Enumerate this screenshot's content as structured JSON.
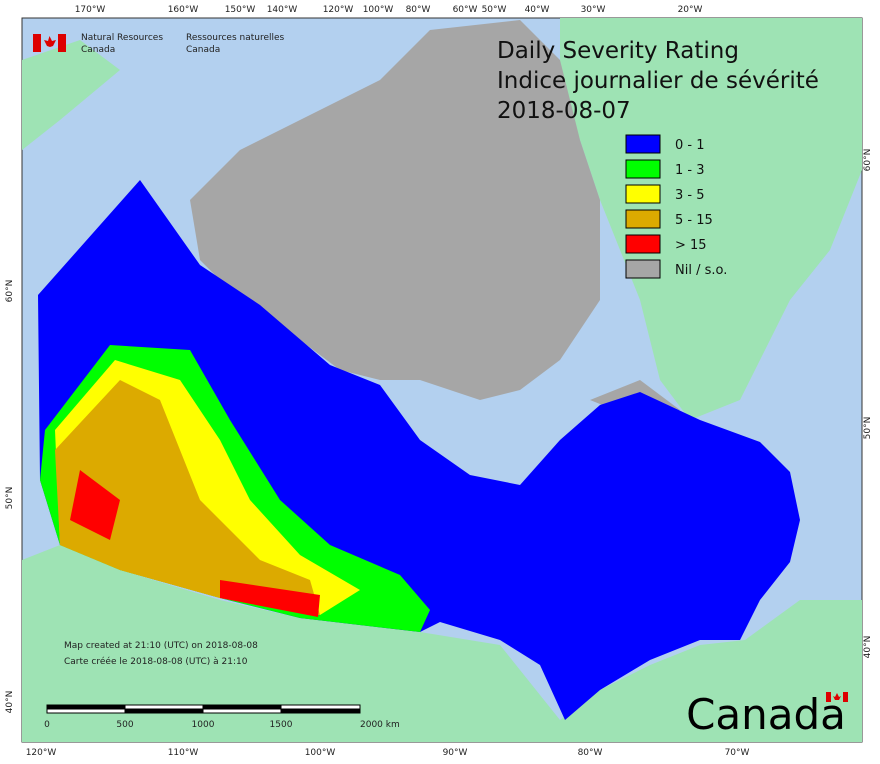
{
  "header": {
    "title": "Daily Severity Rating",
    "title_fr": "Indice journalier de sévérité",
    "date": "2018-08-07"
  },
  "agency": {
    "en_line1": "Natural Resources",
    "en_line2": "Canada",
    "fr_line1": "Ressources naturelles",
    "fr_line2": "Canada"
  },
  "legend": {
    "items": [
      {
        "label": "0 - 1",
        "color": "#0000ff"
      },
      {
        "label": "1 - 3",
        "color": "#00ff00"
      },
      {
        "label": "3 - 5",
        "color": "#ffff00"
      },
      {
        "label": "5 - 15",
        "color": "#dcaa00"
      },
      {
        "label": "> 15",
        "color": "#ff0000"
      },
      {
        "label": "Nil / s.o.",
        "color": "#a6a6a6"
      }
    ]
  },
  "graticule": {
    "top": [
      "170°W",
      "160°W",
      "150°W",
      "140°W",
      "120°W",
      "100°W",
      "80°W",
      "60°W",
      "50°W",
      "40°W",
      "30°W",
      "20°W"
    ],
    "bottom": [
      "120°W",
      "110°W",
      "100°W",
      "90°W",
      "80°W",
      "70°W"
    ],
    "left": [
      "60°N",
      "50°N",
      "40°N"
    ],
    "right": [
      "60°N",
      "50°N",
      "40°N"
    ]
  },
  "credits": {
    "line1": "Map created at 21:10 (UTC) on 2018-08-08",
    "line2": "Carte créée le 2018-08-08 (UTC) à 21:10"
  },
  "scale": {
    "labels": [
      "0",
      "500",
      "1000",
      "1500",
      "2000 km"
    ]
  },
  "wordmark": "Canada"
}
